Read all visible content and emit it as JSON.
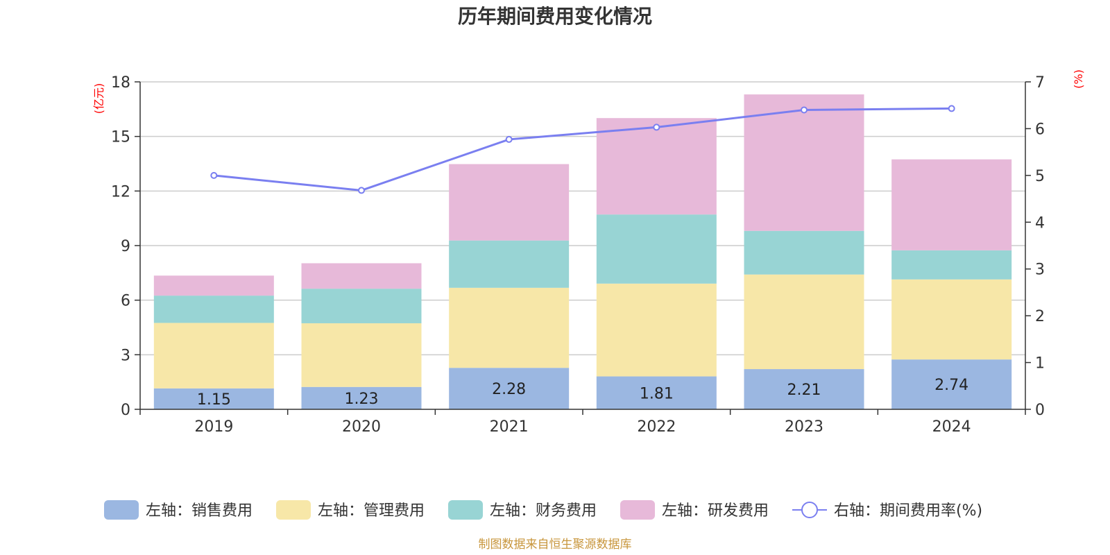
{
  "chart_data": {
    "type": "bar",
    "stacked": true,
    "title": "历年期间费用变化情况",
    "categories": [
      "2019",
      "2020",
      "2021",
      "2022",
      "2023",
      "2024"
    ],
    "y_left": {
      "unit_label": "(亿元)",
      "ylim": [
        0,
        18
      ],
      "ticks": [
        "0",
        "3",
        "6",
        "9",
        "12",
        "15",
        "18"
      ]
    },
    "y_right": {
      "unit_label": "(%)",
      "ylim": [
        0,
        7
      ],
      "ticks": [
        "0",
        "1",
        "2",
        "3",
        "4",
        "5",
        "6",
        "7"
      ]
    },
    "series": [
      {
        "name": "左轴：销售费用",
        "axis": "left",
        "kind": "bar",
        "color": "#9bb7e1",
        "values": [
          1.15,
          1.23,
          2.28,
          1.81,
          2.21,
          2.74
        ],
        "labels": [
          "1.15",
          "1.23",
          "2.28",
          "1.81",
          "2.21",
          "2.74"
        ]
      },
      {
        "name": "左轴：管理费用",
        "axis": "left",
        "kind": "bar",
        "color": "#f7e7a8",
        "values": [
          3.6,
          3.5,
          4.4,
          5.1,
          5.2,
          4.4
        ]
      },
      {
        "name": "左轴：财务费用",
        "axis": "left",
        "kind": "bar",
        "color": "#98d4d4",
        "values": [
          1.5,
          1.9,
          2.6,
          3.8,
          2.4,
          1.6
        ]
      },
      {
        "name": "左轴：研发费用",
        "axis": "left",
        "kind": "bar",
        "color": "#e7b9d9",
        "values": [
          1.1,
          1.4,
          4.2,
          5.3,
          7.5,
          5.0
        ]
      },
      {
        "name": "右轴：期间费用率(%)",
        "axis": "right",
        "kind": "line",
        "color": "#7a7ff0",
        "values": [
          5.0,
          4.68,
          5.77,
          6.03,
          6.4,
          6.43
        ]
      }
    ],
    "grid": true,
    "legend_position": "bottom"
  },
  "source_note": "制图数据来自恒生聚源数据库"
}
